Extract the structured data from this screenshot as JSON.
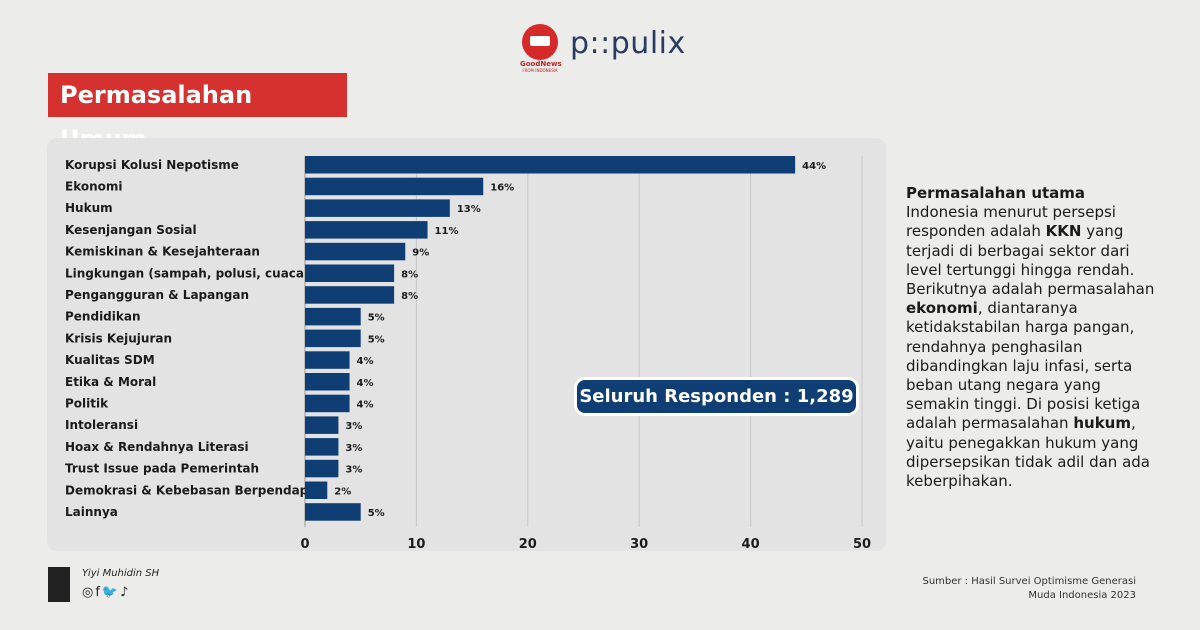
{
  "header": {
    "brand1_text": "GoodNews",
    "brand1_sub": "FROM INDONESIA",
    "brand2_text": "p::pulix",
    "title": "Permasalahan Umum"
  },
  "chart_data": {
    "type": "bar",
    "orientation": "horizontal",
    "categories": [
      "Korupsi Kolusi Nepotisme",
      "Ekonomi",
      "Hukum",
      "Kesenjangan Sosial",
      "Kemiskinan & Kesejahteraan",
      "Lingkungan (sampah, polusi, cuaca)",
      "Pengangguran & Lapangan",
      "Pendidikan",
      "Krisis Kejujuran",
      "Kualitas SDM",
      "Etika & Moral",
      "Politik",
      "Intoleransi",
      "Hoax & Rendahnya Literasi",
      "Trust Issue pada Pemerintah",
      "Demokrasi & Kebebasan Berpendapat",
      "Lainnya"
    ],
    "values": [
      44,
      16,
      13,
      11,
      9,
      8,
      8,
      5,
      5,
      4,
      4,
      4,
      3,
      3,
      3,
      2,
      5
    ],
    "value_labels": [
      "44%",
      "16%",
      "13%",
      "11%",
      "9%",
      "8%",
      "8%",
      "5%",
      "5%",
      "4%",
      "4%",
      "4%",
      "3%",
      "3%",
      "3%",
      "2%",
      "5%"
    ],
    "xticks": [
      0,
      10,
      20,
      30,
      40,
      50
    ],
    "xlim": [
      0,
      50
    ],
    "bar_color": "#0f3e75",
    "grid": true,
    "title": "",
    "xlabel": "",
    "ylabel": ""
  },
  "respondent_badge": "Seluruh Responden : 1,289",
  "side_text": {
    "heading": "Permasalahan utama",
    "p1": "Indonesia menurut persepsi responden adalah ",
    "b1": "KKN",
    "p2": " yang terjadi di berbagai sektor dari level tertunggi hingga rendah. Berikutnya adalah permasalahan ",
    "b2": "ekonomi",
    "p3": ", diantaranya ketidakstabilan harga pangan, rendahnya penghasilan dibandingkan laju infasi, serta beban utang negara yang semakin tinggi. Di posisi ketiga adalah permasalahan ",
    "b3": "hukum",
    "p4": ", yaitu penegakkan hukum yang dipersepsikan tidak adil dan ada keberpihakan."
  },
  "footer": {
    "author": "Yiyi Muhidin SH",
    "socials": "◎f🐦♪",
    "source_line1": "Sumber :  Hasil Survei Optimisme Generasi",
    "source_line2": "Muda Indonesia 2023"
  },
  "colors": {
    "title_bg": "#d5322f",
    "bar": "#0f3e75",
    "badge": "#0f3e75"
  }
}
